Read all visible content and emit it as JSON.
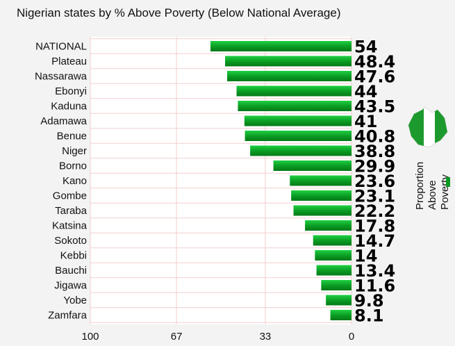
{
  "chart_data": {
    "type": "bar",
    "orientation": "horizontal",
    "title": "Nigerian states by % Above Poverty (Below National Average)",
    "categories": [
      "NATIONAL",
      "Plateau",
      "Nassarawa",
      "Ebonyi",
      "Kaduna",
      "Adamawa",
      "Benue",
      "Niger",
      "Borno",
      "Kano",
      "Gombe",
      "Taraba",
      "Katsina",
      "Sokoto",
      "Kebbi",
      "Bauchi",
      "Jigawa",
      "Yobe",
      "Zamfara"
    ],
    "values": [
      54,
      48.4,
      47.6,
      44,
      43.5,
      41,
      40.8,
      38.8,
      29.9,
      23.6,
      23.1,
      22.2,
      17.8,
      14.7,
      14,
      13.4,
      11.6,
      9.8,
      8.1
    ],
    "value_labels": [
      "54",
      "48.4",
      "47.6",
      "44",
      "43.5",
      "41",
      "40.8",
      "38.8",
      "29.9",
      "23.6",
      "23.1",
      "22.2",
      "17.8",
      "14.7",
      "14",
      "13.4",
      "11.6",
      "9.8",
      "8.1"
    ],
    "xlim": [
      100,
      0
    ],
    "x_ticks": [
      100,
      67,
      33,
      0
    ],
    "x_tick_labels": [
      "100",
      "67",
      "33",
      "0"
    ],
    "xlabel": "",
    "ylabel": "",
    "bar_color": "#0a9a22",
    "grid": true,
    "legend": {
      "label_lines": [
        "Proportion",
        "Above",
        "Poverty"
      ],
      "position": "right",
      "color": "#0a9a22"
    }
  }
}
